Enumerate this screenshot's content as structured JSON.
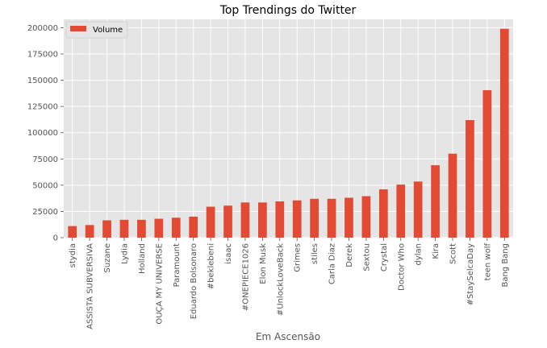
{
  "chart_data": {
    "type": "bar",
    "title": "Top Trendings do Twitter",
    "xlabel": "Em Ascensão",
    "ylabel": "",
    "categories": [
      "stydia",
      "ASSISTA SUBVERSIVA",
      "Suzane",
      "Lydia",
      "Holland",
      "OUÇA MY UNIVERSE",
      "Paramount",
      "Eduardo Bolsonaro",
      "#beklebeni",
      "isaac",
      "#ONEPIECE1026",
      "Elon Musk",
      "#UnlockLoveBack",
      "Grimes",
      "stiles",
      "Carla Diaz",
      "Derek",
      "Sextou",
      "Crystal",
      "Doctor Who",
      "dylan",
      "Kira",
      "Scott",
      "#StaySelcaDay",
      "teen wolf",
      "Bang Bang"
    ],
    "series": [
      {
        "name": "Volume",
        "color": "#E24A33",
        "values": [
          11000,
          12000,
          16500,
          17000,
          17000,
          18000,
          19000,
          20000,
          29500,
          30500,
          33500,
          33500,
          34500,
          35500,
          37000,
          37000,
          38000,
          39500,
          46000,
          50500,
          53500,
          69000,
          80000,
          112000,
          140500,
          199000
        ]
      }
    ],
    "ylim": [
      0,
      208000
    ],
    "yticks": [
      0,
      25000,
      50000,
      75000,
      100000,
      125000,
      150000,
      175000,
      200000
    ],
    "ytick_labels": [
      "0",
      "25000",
      "50000",
      "75000",
      "100000",
      "125000",
      "150000",
      "175000",
      "200000"
    ],
    "grid": true,
    "legend_position": "top-left",
    "colors": {
      "plot_background": "#E5E5E5",
      "grid": "#FFFFFF",
      "bar": "#E24A33"
    }
  }
}
